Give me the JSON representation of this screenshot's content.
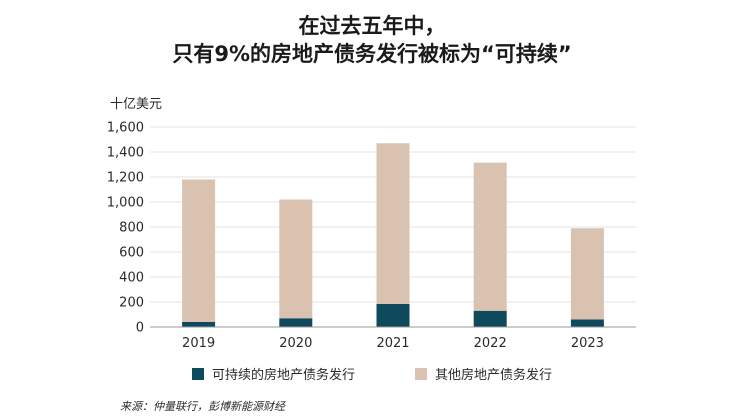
{
  "chart_data": {
    "type": "bar",
    "stacked": true,
    "title_line1": "在过去五年中，",
    "title_line2": "只有9%的房地产债务发行被标为“可持续”",
    "ylabel": "十亿美元",
    "ylim": [
      0,
      1600
    ],
    "yticks": [
      0,
      200,
      400,
      600,
      800,
      1000,
      1200,
      1400,
      1600
    ],
    "ytick_labels": [
      "0",
      "200",
      "400",
      "600",
      "800",
      "1,000",
      "1,200",
      "1,400",
      "1,600"
    ],
    "grid": true,
    "categories": [
      "2019",
      "2020",
      "2021",
      "2022",
      "2023"
    ],
    "series": [
      {
        "name": "可持续的房地产债务发行",
        "color": "#0e4a5c",
        "values": [
          40,
          70,
          185,
          130,
          60
        ]
      },
      {
        "name": "其他房地产债务发行",
        "color": "#d9c3b0",
        "values": [
          1140,
          950,
          1285,
          1185,
          730
        ]
      }
    ],
    "legend_position": "bottom"
  },
  "source": "来源：仲量联行，彭博新能源财经"
}
